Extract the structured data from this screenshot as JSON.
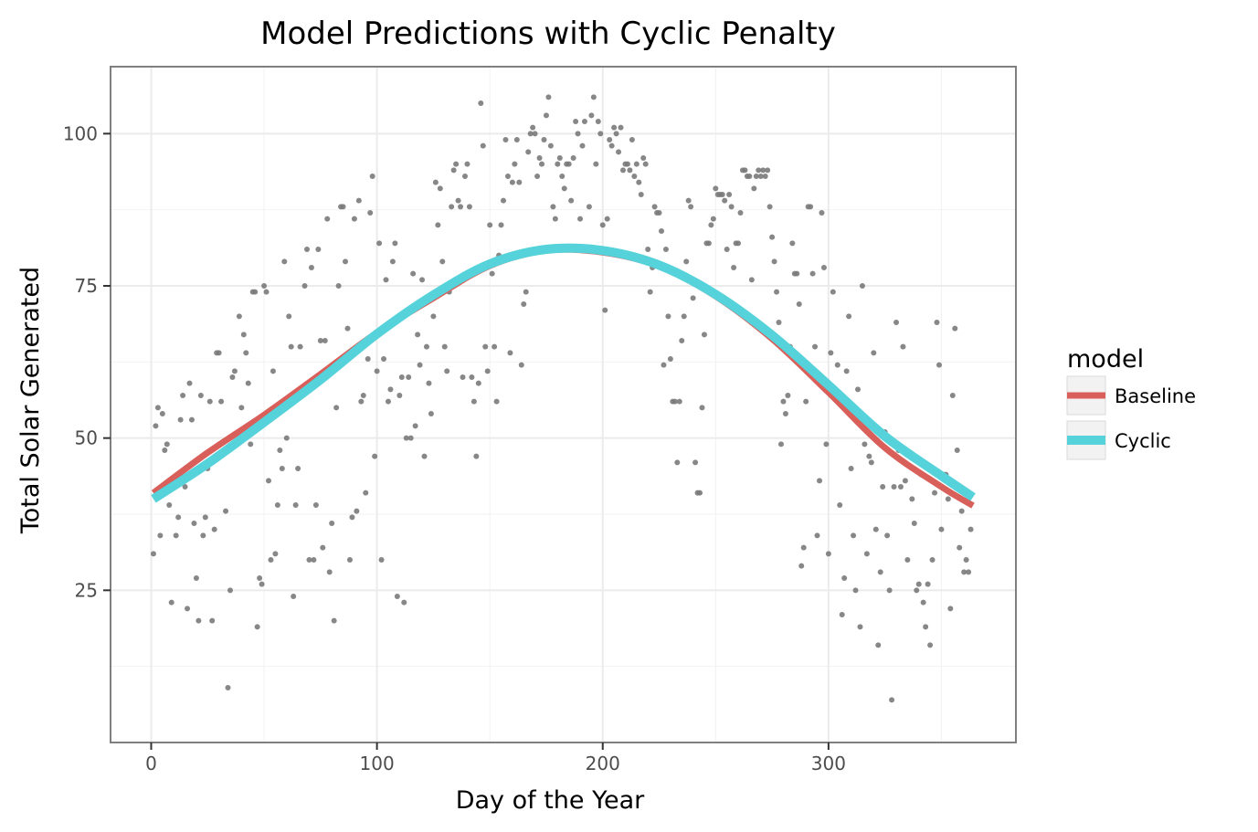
{
  "chart_data": {
    "type": "scatter",
    "title": "Model Predictions with Cyclic Penalty",
    "xlabel": "Day of the Year",
    "ylabel": "Total Solar Generated",
    "xlim": [
      -18,
      383
    ],
    "ylim": [
      0,
      111
    ],
    "x_ticks": [
      0,
      100,
      200,
      300
    ],
    "y_ticks": [
      25,
      50,
      75,
      100
    ],
    "grid": true,
    "legend": {
      "title": "model",
      "position": "right"
    },
    "points": [
      [
        1,
        31
      ],
      [
        2,
        52
      ],
      [
        3,
        55
      ],
      [
        4,
        34
      ],
      [
        5,
        54
      ],
      [
        6,
        48
      ],
      [
        7,
        49
      ],
      [
        8,
        39
      ],
      [
        9,
        23
      ],
      [
        11,
        34
      ],
      [
        12,
        37
      ],
      [
        13,
        53
      ],
      [
        14,
        57
      ],
      [
        15,
        42
      ],
      [
        16,
        22
      ],
      [
        17,
        59
      ],
      [
        18,
        53
      ],
      [
        19,
        36
      ],
      [
        20,
        27
      ],
      [
        21,
        20
      ],
      [
        22,
        57
      ],
      [
        23,
        34
      ],
      [
        24,
        37
      ],
      [
        25,
        45
      ],
      [
        26,
        56
      ],
      [
        27,
        20
      ],
      [
        28,
        35
      ],
      [
        29,
        64
      ],
      [
        30,
        64
      ],
      [
        31,
        56
      ],
      [
        33,
        38
      ],
      [
        34,
        9
      ],
      [
        35,
        25
      ],
      [
        36,
        60
      ],
      [
        37,
        61
      ],
      [
        39,
        70
      ],
      [
        40,
        55
      ],
      [
        41,
        67
      ],
      [
        42,
        64
      ],
      [
        43,
        59
      ],
      [
        44,
        49
      ],
      [
        45,
        74
      ],
      [
        46,
        74
      ],
      [
        47,
        19
      ],
      [
        48,
        27
      ],
      [
        49,
        26
      ],
      [
        50,
        75
      ],
      [
        51,
        74
      ],
      [
        52,
        43
      ],
      [
        53,
        30
      ],
      [
        54,
        61
      ],
      [
        55,
        31
      ],
      [
        56,
        39
      ],
      [
        57,
        48
      ],
      [
        58,
        45
      ],
      [
        59,
        79
      ],
      [
        60,
        50
      ],
      [
        61,
        70
      ],
      [
        62,
        65
      ],
      [
        63,
        24
      ],
      [
        64,
        39
      ],
      [
        65,
        45
      ],
      [
        66,
        65
      ],
      [
        68,
        75
      ],
      [
        69,
        81
      ],
      [
        70,
        30
      ],
      [
        71,
        78
      ],
      [
        72,
        30
      ],
      [
        73,
        39
      ],
      [
        74,
        81
      ],
      [
        75,
        66
      ],
      [
        76,
        32
      ],
      [
        77,
        66
      ],
      [
        78,
        86
      ],
      [
        79,
        28
      ],
      [
        80,
        36
      ],
      [
        81,
        20
      ],
      [
        82,
        55
      ],
      [
        83,
        75
      ],
      [
        84,
        88
      ],
      [
        85,
        88
      ],
      [
        86,
        79
      ],
      [
        87,
        68
      ],
      [
        88,
        30
      ],
      [
        89,
        37
      ],
      [
        90,
        86
      ],
      [
        91,
        38
      ],
      [
        92,
        89
      ],
      [
        93,
        56
      ],
      [
        94,
        57
      ],
      [
        95,
        41
      ],
      [
        96,
        63
      ],
      [
        97,
        87
      ],
      [
        98,
        93
      ],
      [
        99,
        47
      ],
      [
        100,
        61
      ],
      [
        101,
        82
      ],
      [
        102,
        30
      ],
      [
        103,
        63
      ],
      [
        104,
        76
      ],
      [
        105,
        56
      ],
      [
        106,
        58
      ],
      [
        107,
        79
      ],
      [
        108,
        82
      ],
      [
        109,
        24
      ],
      [
        110,
        57
      ],
      [
        111,
        60
      ],
      [
        112,
        23
      ],
      [
        113,
        50
      ],
      [
        114,
        60
      ],
      [
        115,
        50
      ],
      [
        116,
        77
      ],
      [
        117,
        52
      ],
      [
        118,
        67
      ],
      [
        119,
        62
      ],
      [
        120,
        76
      ],
      [
        121,
        47
      ],
      [
        122,
        65
      ],
      [
        123,
        59
      ],
      [
        124,
        54
      ],
      [
        125,
        70
      ],
      [
        126,
        92
      ],
      [
        127,
        85
      ],
      [
        128,
        91
      ],
      [
        129,
        79
      ],
      [
        130,
        65
      ],
      [
        131,
        61
      ],
      [
        132,
        74
      ],
      [
        133,
        88
      ],
      [
        134,
        94
      ],
      [
        135,
        95
      ],
      [
        136,
        89
      ],
      [
        137,
        88
      ],
      [
        138,
        60
      ],
      [
        139,
        93
      ],
      [
        140,
        95
      ],
      [
        141,
        88
      ],
      [
        142,
        60
      ],
      [
        143,
        56
      ],
      [
        144,
        47
      ],
      [
        145,
        59
      ],
      [
        146,
        105
      ],
      [
        147,
        98
      ],
      [
        148,
        65
      ],
      [
        149,
        61
      ],
      [
        150,
        85
      ],
      [
        151,
        77
      ],
      [
        152,
        65
      ],
      [
        153,
        56
      ],
      [
        154,
        80
      ],
      [
        155,
        85
      ],
      [
        156,
        89
      ],
      [
        157,
        99
      ],
      [
        158,
        93
      ],
      [
        159,
        64
      ],
      [
        160,
        92
      ],
      [
        161,
        95
      ],
      [
        162,
        99
      ],
      [
        163,
        92
      ],
      [
        164,
        62
      ],
      [
        165,
        72
      ],
      [
        166,
        74
      ],
      [
        167,
        97
      ],
      [
        168,
        100
      ],
      [
        169,
        101
      ],
      [
        170,
        100
      ],
      [
        171,
        93
      ],
      [
        172,
        96
      ],
      [
        173,
        95
      ],
      [
        174,
        99
      ],
      [
        175,
        103
      ],
      [
        176,
        106
      ],
      [
        177,
        98
      ],
      [
        178,
        88
      ],
      [
        179,
        86
      ],
      [
        180,
        95
      ],
      [
        181,
        96
      ],
      [
        182,
        93
      ],
      [
        183,
        91
      ],
      [
        184,
        95
      ],
      [
        185,
        95
      ],
      [
        186,
        89
      ],
      [
        187,
        96
      ],
      [
        188,
        102
      ],
      [
        189,
        100
      ],
      [
        190,
        86
      ],
      [
        191,
        98
      ],
      [
        192,
        102
      ],
      [
        193,
        81
      ],
      [
        194,
        88
      ],
      [
        195,
        103
      ],
      [
        196,
        106
      ],
      [
        197,
        95
      ],
      [
        198,
        102
      ],
      [
        199,
        100
      ],
      [
        200,
        85
      ],
      [
        201,
        71
      ],
      [
        202,
        86
      ],
      [
        203,
        99
      ],
      [
        204,
        98
      ],
      [
        205,
        101
      ],
      [
        206,
        100
      ],
      [
        207,
        97
      ],
      [
        208,
        101
      ],
      [
        209,
        94
      ],
      [
        210,
        95
      ],
      [
        211,
        95
      ],
      [
        212,
        94
      ],
      [
        213,
        99
      ],
      [
        214,
        93
      ],
      [
        215,
        95
      ],
      [
        216,
        92
      ],
      [
        217,
        90
      ],
      [
        218,
        96
      ],
      [
        219,
        95
      ],
      [
        220,
        81
      ],
      [
        221,
        74
      ],
      [
        222,
        78
      ],
      [
        223,
        88
      ],
      [
        224,
        87
      ],
      [
        225,
        87
      ],
      [
        226,
        84
      ],
      [
        227,
        62
      ],
      [
        228,
        81
      ],
      [
        229,
        70
      ],
      [
        230,
        63
      ],
      [
        231,
        56
      ],
      [
        232,
        56
      ],
      [
        233,
        46
      ],
      [
        234,
        56
      ],
      [
        235,
        66
      ],
      [
        236,
        70
      ],
      [
        237,
        79
      ],
      [
        238,
        89
      ],
      [
        239,
        88
      ],
      [
        240,
        73
      ],
      [
        241,
        46
      ],
      [
        242,
        41
      ],
      [
        243,
        41
      ],
      [
        244,
        55
      ],
      [
        245,
        67
      ],
      [
        246,
        82
      ],
      [
        247,
        82
      ],
      [
        248,
        85
      ],
      [
        249,
        86
      ],
      [
        250,
        91
      ],
      [
        251,
        90
      ],
      [
        252,
        90
      ],
      [
        253,
        90
      ],
      [
        254,
        89
      ],
      [
        255,
        81
      ],
      [
        256,
        90
      ],
      [
        257,
        88
      ],
      [
        258,
        78
      ],
      [
        259,
        82
      ],
      [
        260,
        82
      ],
      [
        261,
        87
      ],
      [
        262,
        94
      ],
      [
        263,
        94
      ],
      [
        264,
        93
      ],
      [
        265,
        93
      ],
      [
        266,
        76
      ],
      [
        267,
        91
      ],
      [
        268,
        93
      ],
      [
        269,
        94
      ],
      [
        270,
        93
      ],
      [
        271,
        94
      ],
      [
        272,
        93
      ],
      [
        273,
        94
      ],
      [
        274,
        88
      ],
      [
        275,
        83
      ],
      [
        276,
        79
      ],
      [
        277,
        74
      ],
      [
        278,
        69
      ],
      [
        279,
        49
      ],
      [
        280,
        56
      ],
      [
        281,
        54
      ],
      [
        282,
        57
      ],
      [
        283,
        65
      ],
      [
        284,
        82
      ],
      [
        285,
        77
      ],
      [
        286,
        77
      ],
      [
        287,
        72
      ],
      [
        288,
        29
      ],
      [
        289,
        32
      ],
      [
        290,
        56
      ],
      [
        291,
        88
      ],
      [
        292,
        88
      ],
      [
        293,
        77
      ],
      [
        294,
        65
      ],
      [
        295,
        34
      ],
      [
        296,
        43
      ],
      [
        297,
        87
      ],
      [
        298,
        78
      ],
      [
        299,
        49
      ],
      [
        300,
        31
      ],
      [
        301,
        64
      ],
      [
        302,
        74
      ],
      [
        303,
        57
      ],
      [
        304,
        62
      ],
      [
        305,
        39
      ],
      [
        306,
        21
      ],
      [
        307,
        27
      ],
      [
        308,
        61
      ],
      [
        309,
        70
      ],
      [
        310,
        45
      ],
      [
        311,
        34
      ],
      [
        312,
        25
      ],
      [
        313,
        58
      ],
      [
        314,
        19
      ],
      [
        315,
        75
      ],
      [
        316,
        49
      ],
      [
        317,
        31
      ],
      [
        318,
        47
      ],
      [
        319,
        46
      ],
      [
        320,
        64
      ],
      [
        321,
        35
      ],
      [
        322,
        16
      ],
      [
        323,
        28
      ],
      [
        324,
        42
      ],
      [
        325,
        51
      ],
      [
        326,
        34
      ],
      [
        327,
        25
      ],
      [
        328,
        7
      ],
      [
        329,
        42
      ],
      [
        330,
        69
      ],
      [
        331,
        48
      ],
      [
        332,
        42
      ],
      [
        333,
        65
      ],
      [
        334,
        43
      ],
      [
        335,
        30
      ],
      [
        336,
        47
      ],
      [
        337,
        40
      ],
      [
        338,
        36
      ],
      [
        339,
        25
      ],
      [
        340,
        26
      ],
      [
        341,
        44
      ],
      [
        342,
        23
      ],
      [
        343,
        19
      ],
      [
        344,
        26
      ],
      [
        345,
        16
      ],
      [
        346,
        30
      ],
      [
        347,
        41
      ],
      [
        348,
        69
      ],
      [
        349,
        62
      ],
      [
        350,
        35
      ],
      [
        351,
        44
      ],
      [
        352,
        44
      ],
      [
        353,
        40
      ],
      [
        354,
        22
      ],
      [
        355,
        57
      ],
      [
        356,
        68
      ],
      [
        357,
        48
      ],
      [
        358,
        32
      ],
      [
        359,
        38
      ],
      [
        360,
        28
      ],
      [
        361,
        30
      ],
      [
        362,
        28
      ],
      [
        363,
        35
      ]
    ],
    "series": [
      {
        "name": "Baseline",
        "color": "#D95F5A",
        "x": [
          1,
          25,
          50,
          75,
          100,
          125,
          150,
          175,
          200,
          225,
          250,
          275,
          300,
          325,
          350,
          364
        ],
        "y": [
          41,
          47.6,
          53.8,
          60.5,
          67.3,
          73,
          78.3,
          80.8,
          80.5,
          78.2,
          73.3,
          66.3,
          57.5,
          48.4,
          42,
          38.9
        ]
      },
      {
        "name": "Cyclic",
        "color": "#56D2DA",
        "x": [
          1,
          25,
          50,
          75,
          100,
          125,
          150,
          175,
          200,
          225,
          250,
          275,
          300,
          325,
          350,
          364
        ],
        "y": [
          40,
          45.8,
          52.6,
          59.6,
          67.1,
          73.5,
          78.6,
          81,
          80.8,
          78.4,
          73.6,
          66.9,
          58.7,
          50.3,
          43.8,
          40.3
        ]
      }
    ]
  }
}
